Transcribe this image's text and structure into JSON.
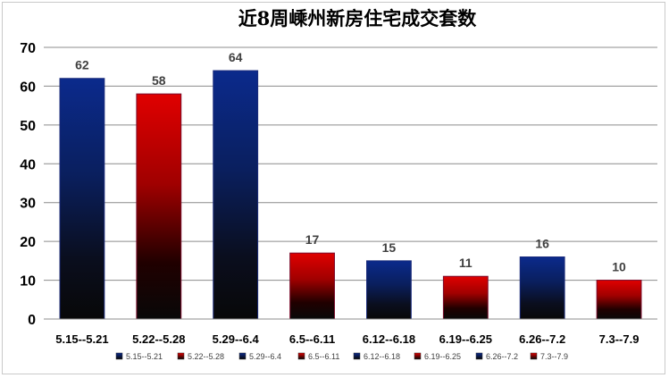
{
  "chart_data": {
    "type": "bar",
    "title": "近8周嵊州新房住宅成交套数",
    "categories": [
      "5.15--5.21",
      "5.22--5.28",
      "5.29--6.4",
      "6.5--6.11",
      "6.12--6.18",
      "6.19--6.25",
      "6.26--7.2",
      "7.3--7.9"
    ],
    "values": [
      62,
      58,
      64,
      17,
      15,
      11,
      16,
      10
    ],
    "xlabel": "",
    "ylabel": "",
    "ylim": [
      0,
      70
    ],
    "yticks": [
      0,
      10,
      20,
      30,
      40,
      50,
      60,
      70
    ],
    "grid": true,
    "legend_position": "bottom",
    "legend": [
      "5.15--5.21",
      "5.22--5.28",
      "5.29--6.4",
      "6.5--6.11",
      "6.12--6.18",
      "6.19--6.25",
      "6.26--7.2",
      "7.3--7.9"
    ],
    "bar_styles": [
      "blue",
      "red",
      "blue",
      "red",
      "blue",
      "red",
      "blue",
      "red"
    ],
    "colors": {
      "blue_top": "#0b2a8c",
      "red_top": "#e00000",
      "bar_bottom": "#080808",
      "grid": "#8c8c8c",
      "label": "#404040"
    }
  }
}
